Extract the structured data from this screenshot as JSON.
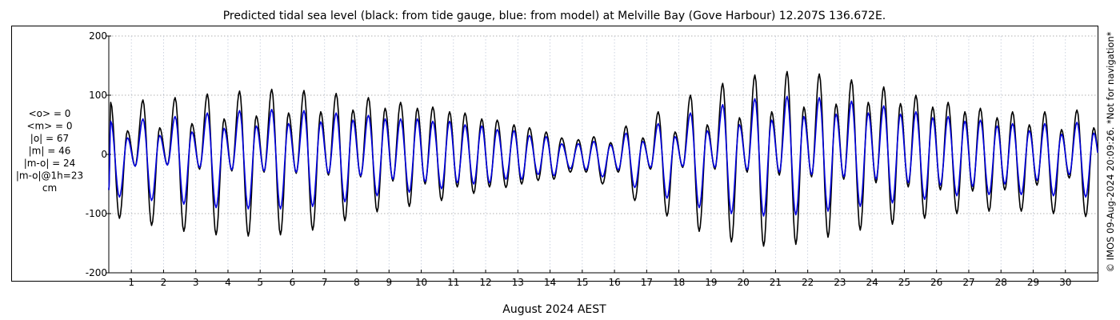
{
  "chart_data": {
    "type": "line",
    "title": "Predicted tidal sea level (black: from tide gauge, blue: from model) at Melville Bay (Gove Harbour) 12.207S 136.672E.",
    "xlabel": "August 2024 AEST",
    "ylabel": "",
    "xlim": [
      0.3,
      31.0
    ],
    "ylim": [
      -200,
      200
    ],
    "y_ticks": [
      -200,
      -100,
      0,
      100,
      200
    ],
    "x_ticks": [
      1,
      2,
      3,
      4,
      5,
      6,
      7,
      8,
      9,
      10,
      11,
      12,
      13,
      14,
      15,
      16,
      17,
      18,
      19,
      20,
      21,
      22,
      23,
      24,
      25,
      26,
      27,
      28,
      29,
      30
    ],
    "grid": true,
    "legend": "none",
    "colors": {
      "observed": "#000000",
      "model": "#0000dd",
      "grid": "#999999"
    },
    "series": [
      {
        "key": "observed",
        "daily": [
          {
            "day": 0.5,
            "high1": 88,
            "low1": -108,
            "high2": 40,
            "low2": -20
          },
          {
            "day": 1.5,
            "high1": 92,
            "low1": -120,
            "high2": 45,
            "low2": -18
          },
          {
            "day": 2.5,
            "high1": 96,
            "low1": -130,
            "high2": 52,
            "low2": -25
          },
          {
            "day": 3.5,
            "high1": 102,
            "low1": -136,
            "high2": 60,
            "low2": -28
          },
          {
            "day": 4.5,
            "high1": 107,
            "low1": -138,
            "high2": 65,
            "low2": -30
          },
          {
            "day": 5.5,
            "high1": 110,
            "low1": -136,
            "high2": 70,
            "low2": -32
          },
          {
            "day": 6.5,
            "high1": 108,
            "low1": -128,
            "high2": 72,
            "low2": -35
          },
          {
            "day": 7.5,
            "high1": 103,
            "low1": -112,
            "high2": 75,
            "low2": -38
          },
          {
            "day": 8.5,
            "high1": 96,
            "low1": -97,
            "high2": 78,
            "low2": -45
          },
          {
            "day": 9.5,
            "high1": 88,
            "low1": -88,
            "high2": 78,
            "low2": -50
          },
          {
            "day": 10.5,
            "high1": 80,
            "low1": -78,
            "high2": 72,
            "low2": -55
          },
          {
            "day": 11.5,
            "high1": 70,
            "low1": -66,
            "high2": 60,
            "low2": -55
          },
          {
            "day": 12.5,
            "high1": 58,
            "low1": -56,
            "high2": 50,
            "low2": -50
          },
          {
            "day": 13.5,
            "high1": 45,
            "low1": -44,
            "high2": 38,
            "low2": -42
          },
          {
            "day": 14.5,
            "high1": 28,
            "low1": -30,
            "high2": 25,
            "low2": -30
          },
          {
            "day": 15.5,
            "high1": 30,
            "low1": -50,
            "high2": 20,
            "low2": -30
          },
          {
            "day": 16.5,
            "high1": 48,
            "low1": -78,
            "high2": 28,
            "low2": -25
          },
          {
            "day": 17.5,
            "high1": 72,
            "low1": -104,
            "high2": 38,
            "low2": -22
          },
          {
            "day": 18.5,
            "high1": 100,
            "low1": -130,
            "high2": 50,
            "low2": -25
          },
          {
            "day": 19.5,
            "high1": 120,
            "low1": -148,
            "high2": 62,
            "low2": -30
          },
          {
            "day": 20.5,
            "high1": 134,
            "low1": -155,
            "high2": 72,
            "low2": -35
          },
          {
            "day": 21.5,
            "high1": 140,
            "low1": -152,
            "high2": 80,
            "low2": -38
          },
          {
            "day": 22.5,
            "high1": 136,
            "low1": -140,
            "high2": 85,
            "low2": -42
          },
          {
            "day": 23.5,
            "high1": 126,
            "low1": -128,
            "high2": 88,
            "low2": -48
          },
          {
            "day": 24.5,
            "high1": 114,
            "low1": -118,
            "high2": 86,
            "low2": -55
          },
          {
            "day": 25.5,
            "high1": 100,
            "low1": -108,
            "high2": 80,
            "low2": -60
          },
          {
            "day": 26.5,
            "high1": 88,
            "low1": -100,
            "high2": 72,
            "low2": -62
          },
          {
            "day": 27.5,
            "high1": 78,
            "low1": -96,
            "high2": 62,
            "low2": -60
          },
          {
            "day": 28.5,
            "high1": 72,
            "low1": -96,
            "high2": 50,
            "low2": -52
          },
          {
            "day": 29.5,
            "high1": 72,
            "low1": -100,
            "high2": 42,
            "low2": -40
          },
          {
            "day": 30.5,
            "high1": 75,
            "low1": -105,
            "high2": 45,
            "low2": -35
          }
        ]
      },
      {
        "key": "model",
        "daily": [
          {
            "day": 0.5,
            "high1": 56,
            "low1": -72,
            "high2": 28,
            "low2": -20
          },
          {
            "day": 1.5,
            "high1": 60,
            "low1": -78,
            "high2": 32,
            "low2": -18
          },
          {
            "day": 2.5,
            "high1": 64,
            "low1": -84,
            "high2": 38,
            "low2": -22
          },
          {
            "day": 3.5,
            "high1": 70,
            "low1": -90,
            "high2": 44,
            "low2": -26
          },
          {
            "day": 4.5,
            "high1": 74,
            "low1": -92,
            "high2": 48,
            "low2": -28
          },
          {
            "day": 5.5,
            "high1": 76,
            "low1": -92,
            "high2": 52,
            "low2": -30
          },
          {
            "day": 6.5,
            "high1": 74,
            "low1": -88,
            "high2": 55,
            "low2": -32
          },
          {
            "day": 7.5,
            "high1": 70,
            "low1": -80,
            "high2": 58,
            "low2": -36
          },
          {
            "day": 8.5,
            "high1": 66,
            "low1": -70,
            "high2": 60,
            "low2": -42
          },
          {
            "day": 9.5,
            "high1": 60,
            "low1": -64,
            "high2": 60,
            "low2": -46
          },
          {
            "day": 10.5,
            "high1": 56,
            "low1": -58,
            "high2": 56,
            "low2": -48
          },
          {
            "day": 11.5,
            "high1": 50,
            "low1": -50,
            "high2": 48,
            "low2": -48
          },
          {
            "day": 12.5,
            "high1": 42,
            "low1": -42,
            "high2": 40,
            "low2": -42
          },
          {
            "day": 13.5,
            "high1": 32,
            "low1": -34,
            "high2": 30,
            "low2": -36
          },
          {
            "day": 14.5,
            "high1": 18,
            "low1": -24,
            "high2": 18,
            "low2": -26
          },
          {
            "day": 15.5,
            "high1": 22,
            "low1": -38,
            "high2": 16,
            "low2": -26
          },
          {
            "day": 16.5,
            "high1": 36,
            "low1": -56,
            "high2": 22,
            "low2": -22
          },
          {
            "day": 17.5,
            "high1": 52,
            "low1": -74,
            "high2": 30,
            "low2": -20
          },
          {
            "day": 18.5,
            "high1": 70,
            "low1": -90,
            "high2": 40,
            "low2": -22
          },
          {
            "day": 19.5,
            "high1": 84,
            "low1": -100,
            "high2": 50,
            "low2": -26
          },
          {
            "day": 20.5,
            "high1": 94,
            "low1": -104,
            "high2": 58,
            "low2": -30
          },
          {
            "day": 21.5,
            "high1": 98,
            "low1": -102,
            "high2": 64,
            "low2": -34
          },
          {
            "day": 22.5,
            "high1": 96,
            "low1": -96,
            "high2": 68,
            "low2": -38
          },
          {
            "day": 23.5,
            "high1": 90,
            "low1": -88,
            "high2": 70,
            "low2": -42
          },
          {
            "day": 24.5,
            "high1": 82,
            "low1": -82,
            "high2": 68,
            "low2": -48
          },
          {
            "day": 25.5,
            "high1": 72,
            "low1": -76,
            "high2": 62,
            "low2": -52
          },
          {
            "day": 26.5,
            "high1": 64,
            "low1": -70,
            "high2": 56,
            "low2": -54
          },
          {
            "day": 27.5,
            "high1": 58,
            "low1": -68,
            "high2": 48,
            "low2": -50
          },
          {
            "day": 28.5,
            "high1": 52,
            "low1": -68,
            "high2": 40,
            "low2": -44
          },
          {
            "day": 29.5,
            "high1": 52,
            "low1": -70,
            "high2": 34,
            "low2": -34
          },
          {
            "day": 30.5,
            "high1": 54,
            "low1": -72,
            "high2": 36,
            "low2": -30
          }
        ]
      }
    ]
  },
  "stats": {
    "lines": [
      "<o> = 0",
      "<m> = 0",
      "|o| = 67",
      "|m| = 46",
      "|m-o| = 24",
      "|m-o|@1h=23",
      "cm"
    ]
  },
  "footer": {
    "copyright": "© IMOS 09-Aug-2024 20:09:26. *Not for navigation*"
  }
}
